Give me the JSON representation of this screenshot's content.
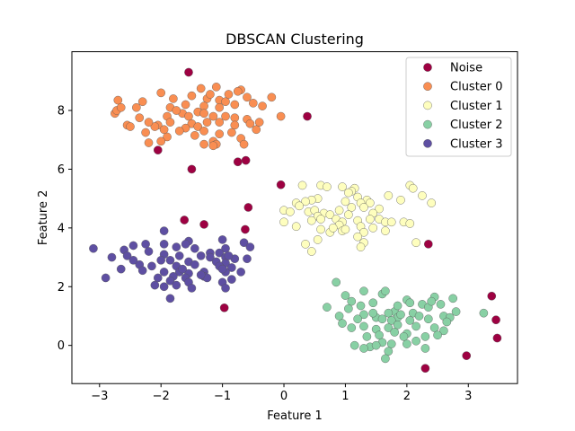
{
  "chart_data": {
    "type": "scatter",
    "title": "DBSCAN Clustering",
    "xlabel": "Feature 1",
    "ylabel": "Feature 2",
    "xlim": [
      -3.45,
      3.8
    ],
    "ylim": [
      -1.3,
      10.0
    ],
    "xticks": [
      -3,
      -2,
      -1,
      0,
      1,
      2,
      3
    ],
    "yticks": [
      0,
      2,
      4,
      6,
      8
    ],
    "grid": false,
    "legend_position": "top-right",
    "series": [
      {
        "name": "Noise",
        "color": "#9e0142",
        "points": [
          [
            -1.55,
            9.3
          ],
          [
            0.38,
            7.8
          ],
          [
            -2.05,
            6.65
          ],
          [
            -1.5,
            6.0
          ],
          [
            -0.75,
            6.25
          ],
          [
            -0.62,
            6.3
          ],
          [
            -0.05,
            5.47
          ],
          [
            -0.58,
            4.7
          ],
          [
            -1.62,
            4.27
          ],
          [
            -1.3,
            4.12
          ],
          [
            -0.63,
            3.95
          ],
          [
            2.35,
            3.45
          ],
          [
            -0.97,
            1.28
          ],
          [
            3.38,
            1.68
          ],
          [
            3.45,
            0.87
          ],
          [
            3.47,
            0.25
          ],
          [
            2.97,
            -0.35
          ],
          [
            2.3,
            -0.78
          ]
        ]
      },
      {
        "name": "Cluster 0",
        "color": "#f98e52",
        "points": [
          [
            -1.1,
            8.8
          ],
          [
            -1.35,
            8.75
          ],
          [
            -0.7,
            8.7
          ],
          [
            -0.75,
            8.65
          ],
          [
            -2.7,
            8.35
          ],
          [
            -1.25,
            8.4
          ],
          [
            -1.05,
            8.35
          ],
          [
            -0.2,
            8.45
          ],
          [
            -0.6,
            8.45
          ],
          [
            -1.5,
            8.5
          ],
          [
            -2.0,
            8.6
          ],
          [
            -1.85,
            8.1
          ],
          [
            -1.6,
            8.2
          ],
          [
            -2.4,
            8.1
          ],
          [
            -2.3,
            8.3
          ],
          [
            -1.3,
            8.15
          ],
          [
            -1.05,
            8.1
          ],
          [
            -0.8,
            8.2
          ],
          [
            -0.95,
            8.3
          ],
          [
            -0.35,
            8.15
          ],
          [
            -0.5,
            8.25
          ],
          [
            -1.4,
            7.95
          ],
          [
            -1.65,
            7.9
          ],
          [
            -1.75,
            8.0
          ],
          [
            -2.75,
            7.9
          ],
          [
            -2.72,
            8.0
          ],
          [
            -2.65,
            8.1
          ],
          [
            -1.15,
            7.8
          ],
          [
            -0.95,
            7.8
          ],
          [
            -0.8,
            7.75
          ],
          [
            -0.6,
            7.7
          ],
          [
            -0.05,
            7.8
          ],
          [
            -1.3,
            7.9
          ],
          [
            -1.55,
            7.8
          ],
          [
            -1.9,
            7.8
          ],
          [
            -2.05,
            7.5
          ],
          [
            -1.85,
            7.6
          ],
          [
            -1.5,
            7.55
          ],
          [
            -1.25,
            7.6
          ],
          [
            -1.05,
            7.6
          ],
          [
            -0.8,
            7.5
          ],
          [
            -0.55,
            7.55
          ],
          [
            -2.55,
            7.5
          ],
          [
            -2.5,
            7.45
          ],
          [
            -2.1,
            7.45
          ],
          [
            -1.6,
            7.4
          ],
          [
            -1.4,
            7.45
          ],
          [
            -0.45,
            7.35
          ],
          [
            -2.25,
            7.25
          ],
          [
            -1.3,
            7.3
          ],
          [
            -1.05,
            7.2
          ],
          [
            -0.85,
            7.25
          ],
          [
            -1.45,
            7.15
          ],
          [
            -1.9,
            7.1
          ],
          [
            -0.7,
            7.05
          ],
          [
            -1.15,
            6.95
          ],
          [
            -2.0,
            6.95
          ],
          [
            -2.2,
            6.9
          ],
          [
            -1.3,
            6.85
          ],
          [
            -1.1,
            6.85
          ],
          [
            -1.15,
            6.8
          ],
          [
            -1.95,
            7.35
          ],
          [
            -2.2,
            7.6
          ],
          [
            -0.4,
            7.6
          ],
          [
            -1.7,
            7.3
          ],
          [
            -0.65,
            6.85
          ],
          [
            -2.35,
            7.75
          ],
          [
            -1.8,
            8.4
          ],
          [
            -1.2,
            8.55
          ],
          [
            -0.9,
            8.55
          ]
        ]
      },
      {
        "name": "Cluster 1",
        "color": "#fefebe",
        "points": [
          [
            0.3,
            5.45
          ],
          [
            0.6,
            5.45
          ],
          [
            0.7,
            5.4
          ],
          [
            0.95,
            5.4
          ],
          [
            1.15,
            5.35
          ],
          [
            1.1,
            5.25
          ],
          [
            1.05,
            5.2
          ],
          [
            2.05,
            5.45
          ],
          [
            2.1,
            5.35
          ],
          [
            2.25,
            5.1
          ],
          [
            1.7,
            5.1
          ],
          [
            1.2,
            5.05
          ],
          [
            1.35,
            4.95
          ],
          [
            0.55,
            5.0
          ],
          [
            0.45,
            4.95
          ],
          [
            0.35,
            4.9
          ],
          [
            0.2,
            4.85
          ],
          [
            0.25,
            4.75
          ],
          [
            1.0,
            4.9
          ],
          [
            1.25,
            4.85
          ],
          [
            1.4,
            4.85
          ],
          [
            2.4,
            4.85
          ],
          [
            1.9,
            4.95
          ],
          [
            0.0,
            4.6
          ],
          [
            0.1,
            4.55
          ],
          [
            0.4,
            4.55
          ],
          [
            0.5,
            4.6
          ],
          [
            0.9,
            4.6
          ],
          [
            1.1,
            4.7
          ],
          [
            1.3,
            4.7
          ],
          [
            1.55,
            4.65
          ],
          [
            0.65,
            4.5
          ],
          [
            0.55,
            4.4
          ],
          [
            0.75,
            4.45
          ],
          [
            1.05,
            4.45
          ],
          [
            1.45,
            4.5
          ],
          [
            0.0,
            4.2
          ],
          [
            0.2,
            4.05
          ],
          [
            0.45,
            4.25
          ],
          [
            0.6,
            4.3
          ],
          [
            0.85,
            4.3
          ],
          [
            0.95,
            4.2
          ],
          [
            1.2,
            4.25
          ],
          [
            1.4,
            4.3
          ],
          [
            1.55,
            4.3
          ],
          [
            1.65,
            4.2
          ],
          [
            1.75,
            4.2
          ],
          [
            1.95,
            4.2
          ],
          [
            2.05,
            4.15
          ],
          [
            0.9,
            4.1
          ],
          [
            1.25,
            4.05
          ],
          [
            1.45,
            4.0
          ],
          [
            0.6,
            3.95
          ],
          [
            0.75,
            3.85
          ],
          [
            0.95,
            3.9
          ],
          [
            1.3,
            3.85
          ],
          [
            0.55,
            3.6
          ],
          [
            0.35,
            3.45
          ],
          [
            0.45,
            3.2
          ],
          [
            1.2,
            3.7
          ],
          [
            1.3,
            3.5
          ],
          [
            1.25,
            3.35
          ],
          [
            1.65,
            3.9
          ],
          [
            2.15,
            3.5
          ],
          [
            0.8,
            4.0
          ],
          [
            1.0,
            3.95
          ]
        ]
      },
      {
        "name": "Cluster 2",
        "color": "#88d0a4",
        "points": [
          [
            0.85,
            2.15
          ],
          [
            1.3,
            1.85
          ],
          [
            1.6,
            1.75
          ],
          [
            1.65,
            1.85
          ],
          [
            2.0,
            1.55
          ],
          [
            2.05,
            1.45
          ],
          [
            2.45,
            1.65
          ],
          [
            2.75,
            1.6
          ],
          [
            1.1,
            1.5
          ],
          [
            1.45,
            1.45
          ],
          [
            1.25,
            1.35
          ],
          [
            2.25,
            1.4
          ],
          [
            2.55,
            1.4
          ],
          [
            0.7,
            1.3
          ],
          [
            1.05,
            1.25
          ],
          [
            1.8,
            1.15
          ],
          [
            1.7,
            1.1
          ],
          [
            2.35,
            1.3
          ],
          [
            2.1,
            1.1
          ],
          [
            3.25,
            1.1
          ],
          [
            0.9,
            1.0
          ],
          [
            1.3,
            1.05
          ],
          [
            1.5,
            0.95
          ],
          [
            1.85,
            0.95
          ],
          [
            2.2,
            1.0
          ],
          [
            2.6,
            1.0
          ],
          [
            2.7,
            0.95
          ],
          [
            1.2,
            0.9
          ],
          [
            1.6,
            0.9
          ],
          [
            1.75,
            0.85
          ],
          [
            2.05,
            0.85
          ],
          [
            2.35,
            0.9
          ],
          [
            2.8,
            1.15
          ],
          [
            1.1,
            0.6
          ],
          [
            1.3,
            0.65
          ],
          [
            1.5,
            0.55
          ],
          [
            1.7,
            0.6
          ],
          [
            1.85,
            0.7
          ],
          [
            2.15,
            0.65
          ],
          [
            2.45,
            0.6
          ],
          [
            2.6,
            0.5
          ],
          [
            1.35,
            0.3
          ],
          [
            1.55,
            0.35
          ],
          [
            1.8,
            0.45
          ],
          [
            2.0,
            0.4
          ],
          [
            2.3,
            0.3
          ],
          [
            2.5,
            0.35
          ],
          [
            1.15,
            0.0
          ],
          [
            1.4,
            -0.05
          ],
          [
            1.6,
            0.1
          ],
          [
            1.75,
            0.05
          ],
          [
            2.0,
            0.05
          ],
          [
            1.3,
            -0.1
          ],
          [
            1.5,
            0.0
          ],
          [
            2.3,
            -0.1
          ],
          [
            1.7,
            -0.2
          ],
          [
            1.65,
            -0.45
          ],
          [
            1.9,
            1.05
          ],
          [
            2.4,
            1.5
          ],
          [
            1.0,
            1.7
          ],
          [
            0.95,
            0.75
          ],
          [
            2.65,
            0.8
          ],
          [
            1.95,
            0.3
          ],
          [
            2.15,
            0.15
          ],
          [
            1.45,
            1.1
          ],
          [
            1.85,
            1.35
          ]
        ]
      },
      {
        "name": "Cluster 3",
        "color": "#5e4fa2",
        "points": [
          [
            -1.95,
            3.9
          ],
          [
            -1.0,
            3.6
          ],
          [
            -0.65,
            3.5
          ],
          [
            -1.55,
            3.55
          ],
          [
            -1.6,
            3.45
          ],
          [
            -1.95,
            3.45
          ],
          [
            -2.25,
            3.45
          ],
          [
            -2.45,
            3.4
          ],
          [
            -3.1,
            3.3
          ],
          [
            -1.75,
            3.35
          ],
          [
            -1.45,
            3.3
          ],
          [
            -0.95,
            3.3
          ],
          [
            -0.55,
            3.35
          ],
          [
            -2.6,
            3.25
          ],
          [
            -2.2,
            3.2
          ],
          [
            -1.2,
            3.15
          ],
          [
            -1.05,
            3.15
          ],
          [
            -2.8,
            3.0
          ],
          [
            -2.55,
            3.05
          ],
          [
            -1.95,
            3.1
          ],
          [
            -1.7,
            3.05
          ],
          [
            -1.35,
            3.05
          ],
          [
            -1.2,
            3.0
          ],
          [
            -0.95,
            3.0
          ],
          [
            -0.8,
            2.95
          ],
          [
            -0.6,
            2.95
          ],
          [
            -2.0,
            2.9
          ],
          [
            -1.85,
            2.9
          ],
          [
            -1.55,
            2.85
          ],
          [
            -1.1,
            2.85
          ],
          [
            -0.95,
            2.8
          ],
          [
            -2.35,
            2.75
          ],
          [
            -2.15,
            2.7
          ],
          [
            -1.75,
            2.7
          ],
          [
            -1.05,
            2.7
          ],
          [
            -0.85,
            2.65
          ],
          [
            -2.65,
            2.6
          ],
          [
            -2.3,
            2.55
          ],
          [
            -1.95,
            2.5
          ],
          [
            -1.7,
            2.5
          ],
          [
            -1.3,
            2.5
          ],
          [
            -0.95,
            2.5
          ],
          [
            -0.7,
            2.5
          ],
          [
            -1.55,
            2.45
          ],
          [
            -1.8,
            2.35
          ],
          [
            -1.3,
            2.35
          ],
          [
            -2.9,
            2.3
          ],
          [
            -2.05,
            2.3
          ],
          [
            -1.6,
            2.3
          ],
          [
            -1.25,
            2.3
          ],
          [
            -0.85,
            2.25
          ],
          [
            -1.85,
            2.2
          ],
          [
            -1.55,
            2.15
          ],
          [
            -1.0,
            2.15
          ],
          [
            -2.1,
            2.05
          ],
          [
            -1.95,
            2.0
          ],
          [
            -1.75,
            2.05
          ],
          [
            -1.5,
            1.95
          ],
          [
            -0.95,
            1.95
          ],
          [
            -1.85,
            1.6
          ],
          [
            -1.35,
            2.4
          ],
          [
            -0.9,
            3.05
          ],
          [
            -1.0,
            2.6
          ],
          [
            -2.45,
            2.9
          ],
          [
            -1.65,
            2.6
          ],
          [
            -1.45,
            2.75
          ]
        ]
      }
    ]
  }
}
